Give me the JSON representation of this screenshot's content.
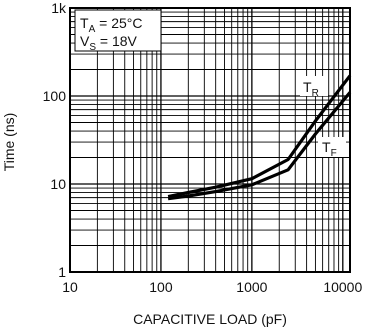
{
  "chart_data": {
    "type": "line",
    "xlabel": "CAPACITIVE LOAD (pF)",
    "ylabel": "Time (ns)",
    "xscale": "log",
    "yscale": "log",
    "xlim": [
      10,
      12000
    ],
    "ylim": [
      1,
      1000
    ],
    "x_ticks": [
      10,
      100,
      1000,
      10000
    ],
    "x_tick_labels": [
      "10",
      "100",
      "1000",
      "10000"
    ],
    "y_ticks": [
      1,
      10,
      100,
      1000
    ],
    "y_tick_labels": [
      "1",
      "10",
      "100",
      "1k"
    ],
    "grid": true,
    "conditions": {
      "ta_sym": "T",
      "ta_sub": "A",
      "ta_val": " = 25°C",
      "vs_sym": "V",
      "vs_sub": "S",
      "vs_val": " = 18V"
    },
    "series": [
      {
        "name": "TR",
        "label_main": "T",
        "label_sub": "R",
        "x": [
          120,
          200,
          400,
          1000,
          2500,
          5000,
          12000
        ],
        "y": [
          7.2,
          8.0,
          9.2,
          11.5,
          19,
          52,
          170
        ]
      },
      {
        "name": "TF",
        "label_main": "T",
        "label_sub": "F",
        "x": [
          120,
          200,
          400,
          1000,
          2500,
          5000,
          12000
        ],
        "y": [
          6.8,
          7.3,
          8.2,
          9.8,
          14.5,
          37,
          110
        ]
      }
    ]
  }
}
